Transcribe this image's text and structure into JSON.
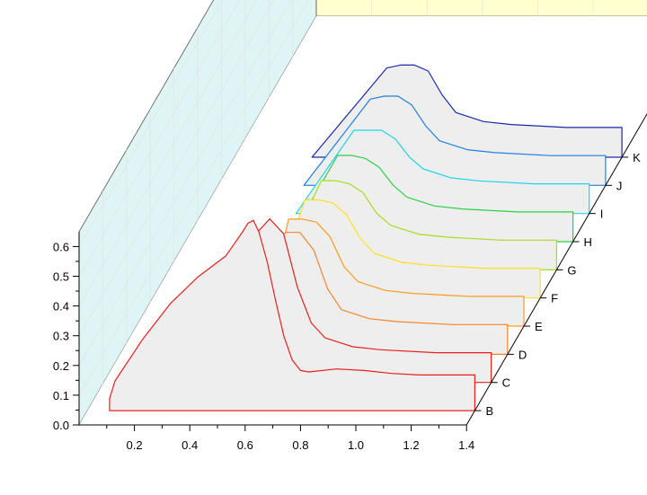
{
  "chart_data": {
    "type": "line",
    "subtype": "3d-waterfall",
    "title": "",
    "xlabel": "",
    "ylabel": "",
    "xlim": [
      0.0,
      1.4
    ],
    "ylim": [
      0.0,
      0.65
    ],
    "x_ticks": [
      "0.2",
      "0.4",
      "0.6",
      "0.8",
      "1.0",
      "1.2",
      "1.4"
    ],
    "y_ticks": [
      "0.0",
      "0.1",
      "0.2",
      "0.3",
      "0.4",
      "0.5",
      "0.6"
    ],
    "grid": true,
    "back_wall_color": "#ffffd0",
    "side_wall_color": "#dff4f4",
    "floor_color": "#eeeeee",
    "series": [
      {
        "label": "B",
        "color": "#e8201c",
        "x": [
          0.08,
          0.08,
          0.1,
          0.2,
          0.3,
          0.4,
          0.5,
          0.53,
          0.56,
          0.58,
          0.6,
          0.62,
          0.65,
          0.68,
          0.71,
          0.74,
          0.77,
          0.8,
          0.9,
          1.0,
          1.1,
          1.2,
          1.3,
          1.4,
          1.4
        ],
        "y": [
          0.0,
          0.04,
          0.1,
          0.24,
          0.36,
          0.45,
          0.52,
          0.56,
          0.6,
          0.63,
          0.64,
          0.6,
          0.5,
          0.37,
          0.25,
          0.17,
          0.135,
          0.13,
          0.14,
          0.135,
          0.125,
          0.12,
          0.12,
          0.12,
          0.0
        ]
      },
      {
        "label": "C",
        "color": "#e8201c",
        "x": [
          0.52,
          0.55,
          0.6,
          0.65,
          0.7,
          0.75,
          0.8,
          0.9,
          1.0,
          1.2,
          1.4,
          1.4
        ],
        "y": [
          0.0,
          0.5,
          0.55,
          0.5,
          0.32,
          0.2,
          0.15,
          0.12,
          0.11,
          0.1,
          0.1,
          0.0
        ]
      },
      {
        "label": "D",
        "color": "#f5852a",
        "x": [
          0.49,
          0.55,
          0.6,
          0.65,
          0.7,
          0.75,
          0.8,
          0.9,
          1.0,
          1.2,
          1.4,
          1.4
        ],
        "y": [
          0.0,
          0.38,
          0.41,
          0.41,
          0.35,
          0.22,
          0.15,
          0.12,
          0.11,
          0.1,
          0.1,
          0.0
        ]
      },
      {
        "label": "E",
        "color": "#ff9a1f",
        "x": [
          0.46,
          0.55,
          0.6,
          0.65,
          0.7,
          0.75,
          0.8,
          0.9,
          1.0,
          1.2,
          1.4,
          1.4
        ],
        "y": [
          0.0,
          0.36,
          0.36,
          0.35,
          0.3,
          0.2,
          0.15,
          0.12,
          0.11,
          0.1,
          0.1,
          0.0
        ]
      },
      {
        "label": "F",
        "color": "#ffe020",
        "x": [
          0.43,
          0.55,
          0.6,
          0.65,
          0.7,
          0.75,
          0.8,
          0.9,
          1.0,
          1.2,
          1.4,
          1.4
        ],
        "y": [
          0.0,
          0.33,
          0.33,
          0.32,
          0.28,
          0.2,
          0.15,
          0.12,
          0.11,
          0.1,
          0.1,
          0.0
        ]
      },
      {
        "label": "G",
        "color": "#a6dd1c",
        "x": [
          0.4,
          0.55,
          0.6,
          0.65,
          0.7,
          0.75,
          0.8,
          0.9,
          1.0,
          1.2,
          1.4,
          1.4
        ],
        "y": [
          0.0,
          0.3,
          0.3,
          0.29,
          0.26,
          0.19,
          0.15,
          0.12,
          0.11,
          0.1,
          0.1,
          0.0
        ]
      },
      {
        "label": "H",
        "color": "#2ecf48",
        "x": [
          0.37,
          0.55,
          0.6,
          0.65,
          0.7,
          0.75,
          0.8,
          0.9,
          1.0,
          1.2,
          1.4,
          1.4
        ],
        "y": [
          0.0,
          0.29,
          0.29,
          0.28,
          0.25,
          0.19,
          0.15,
          0.12,
          0.11,
          0.1,
          0.1,
          0.0
        ]
      },
      {
        "label": "I",
        "color": "#1ed4e8",
        "x": [
          0.34,
          0.55,
          0.6,
          0.65,
          0.7,
          0.75,
          0.8,
          0.9,
          1.0,
          1.2,
          1.4,
          1.4
        ],
        "y": [
          0.0,
          0.28,
          0.28,
          0.28,
          0.25,
          0.19,
          0.15,
          0.12,
          0.11,
          0.1,
          0.1,
          0.0
        ]
      },
      {
        "label": "J",
        "color": "#1e80e0",
        "x": [
          0.31,
          0.55,
          0.6,
          0.65,
          0.7,
          0.75,
          0.8,
          0.9,
          1.0,
          1.2,
          1.4,
          1.4
        ],
        "y": [
          0.0,
          0.29,
          0.3,
          0.3,
          0.27,
          0.2,
          0.15,
          0.12,
          0.11,
          0.1,
          0.1,
          0.0
        ]
      },
      {
        "label": "K",
        "color": "#1a2aa8",
        "x": [
          0.28,
          0.55,
          0.6,
          0.65,
          0.7,
          0.75,
          0.8,
          0.9,
          1.0,
          1.2,
          1.4,
          1.4
        ],
        "y": [
          0.0,
          0.3,
          0.31,
          0.31,
          0.29,
          0.21,
          0.15,
          0.12,
          0.11,
          0.1,
          0.1,
          0.0
        ]
      }
    ]
  }
}
